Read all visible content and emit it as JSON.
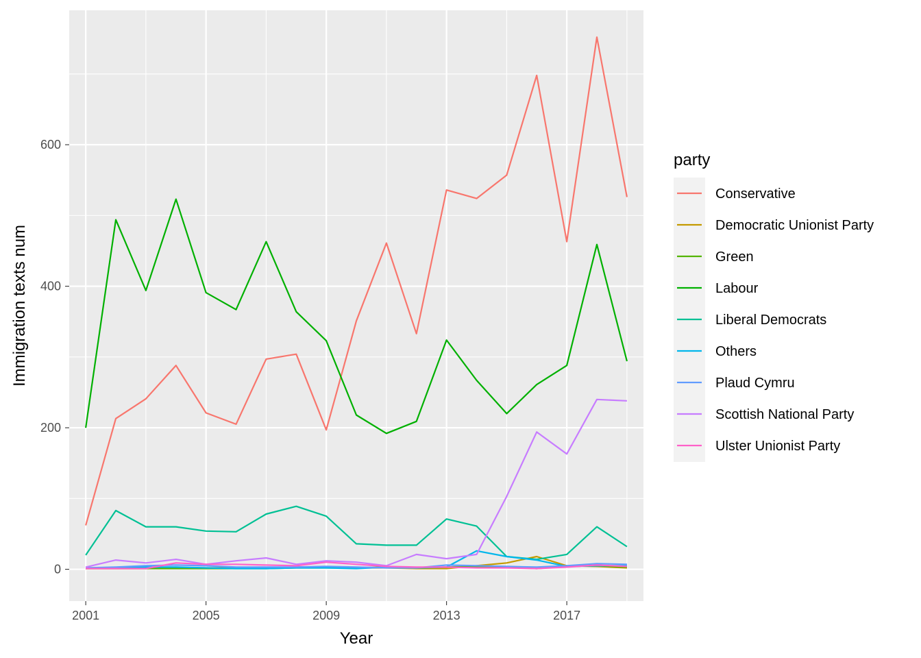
{
  "chart_data": {
    "type": "line",
    "xlabel": "Year",
    "ylabel": "Immigration texts num",
    "legend_title": "party",
    "legend_position": "right",
    "grid": true,
    "xlim": [
      2000.45,
      2019.55
    ],
    "ylim": [
      -45,
      790
    ],
    "x_ticks": [
      2001,
      2005,
      2009,
      2013,
      2017
    ],
    "y_ticks": [
      0,
      200,
      400,
      600
    ],
    "x": [
      2001,
      2002,
      2003,
      2004,
      2005,
      2006,
      2007,
      2008,
      2009,
      2010,
      2011,
      2012,
      2013,
      2014,
      2015,
      2016,
      2017,
      2018,
      2019
    ],
    "series": [
      {
        "name": "Conservative",
        "color": "#F8766D",
        "values": [
          62,
          213,
          241,
          288,
          221,
          205,
          297,
          304,
          197,
          351,
          461,
          333,
          536,
          524,
          557,
          698,
          463,
          752,
          526
        ]
      },
      {
        "name": "Democratic Unionist Party",
        "color": "#C49A00",
        "values": [
          1,
          1,
          1,
          2,
          2,
          2,
          2,
          3,
          3,
          2,
          2,
          1,
          1,
          5,
          9,
          18,
          5,
          4,
          2
        ]
      },
      {
        "name": "Green",
        "color": "#53B400",
        "values": [
          1,
          1,
          1,
          1,
          1,
          1,
          1,
          2,
          2,
          2,
          3,
          2,
          3,
          4,
          3,
          1,
          4,
          5,
          3
        ]
      },
      {
        "name": "Labour",
        "color": "#00B000",
        "values": [
          200,
          494,
          394,
          523,
          391,
          367,
          463,
          364,
          323,
          218,
          192,
          209,
          324,
          267,
          220,
          261,
          288,
          459,
          294
        ]
      },
      {
        "name": "Liberal Democrats",
        "color": "#00C094",
        "values": [
          20,
          83,
          60,
          60,
          54,
          53,
          78,
          89,
          75,
          36,
          34,
          34,
          71,
          61,
          18,
          14,
          21,
          60,
          32
        ]
      },
      {
        "name": "Others",
        "color": "#00B6EB",
        "values": [
          2,
          2,
          3,
          3,
          2,
          1,
          1,
          2,
          2,
          1,
          3,
          2,
          3,
          26,
          18,
          13,
          4,
          5,
          5
        ]
      },
      {
        "name": "Plaud Cymru",
        "color": "#619CFF",
        "values": [
          2,
          3,
          5,
          6,
          5,
          3,
          3,
          3,
          4,
          3,
          2,
          2,
          6,
          5,
          4,
          3,
          5,
          8,
          7
        ]
      },
      {
        "name": "Scottish National Party",
        "color": "#C77CFF",
        "values": [
          3,
          13,
          9,
          14,
          7,
          12,
          16,
          7,
          12,
          10,
          5,
          21,
          15,
          21,
          103,
          194,
          163,
          240,
          238
        ]
      },
      {
        "name": "Ulster Unionist Party",
        "color": "#FF61C9",
        "values": [
          1,
          1,
          1,
          9,
          7,
          7,
          6,
          5,
          10,
          7,
          4,
          3,
          3,
          2,
          2,
          1,
          3,
          6,
          4
        ]
      }
    ]
  }
}
